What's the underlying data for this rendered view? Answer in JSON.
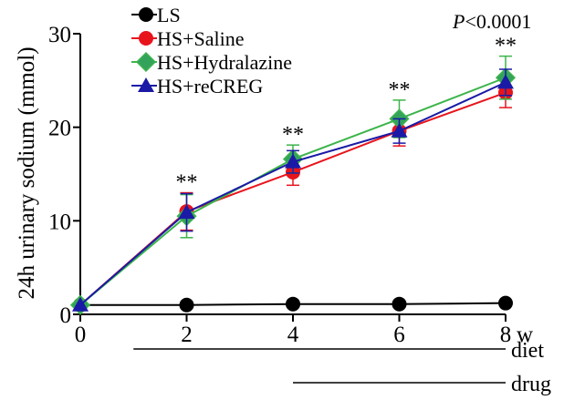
{
  "chart_data": {
    "type": "line",
    "title": "",
    "ylabel": "24h urinary sodium (mmol)",
    "xlabel": "",
    "x_unit": "w",
    "x": [
      0,
      2,
      4,
      6,
      8
    ],
    "xlim": [
      0,
      8
    ],
    "ylim": [
      0,
      30
    ],
    "xticks": [
      "0",
      "2",
      "4",
      "6",
      "8"
    ],
    "yticks": [
      "0",
      "10",
      "20",
      "30"
    ],
    "grid": false,
    "legend_position": "top-left",
    "p_value": {
      "prefix": "P",
      "text": "<0.0001"
    },
    "significance": [
      "",
      "**",
      "**",
      "**",
      "**"
    ],
    "bars": [
      {
        "label": "diet",
        "from": 1,
        "to": 8
      },
      {
        "label": "drug",
        "from": 4,
        "to": 8
      }
    ],
    "series": [
      {
        "name": "LS",
        "marker": "circle",
        "color": "#000000",
        "values": [
          1.0,
          1.0,
          1.1,
          1.1,
          1.2
        ],
        "errors": [
          0,
          0,
          0,
          0,
          0
        ]
      },
      {
        "name": "HS+Saline",
        "marker": "circle",
        "color": "#e8141c",
        "values": [
          1.0,
          11.0,
          15.2,
          19.6,
          23.7
        ],
        "errors": [
          0,
          2.0,
          1.4,
          1.6,
          1.6
        ]
      },
      {
        "name": "HS+Hydralazine",
        "marker": "diamond",
        "color": "#3cb44b",
        "fill": "#33a35b",
        "values": [
          1.0,
          10.5,
          16.6,
          20.9,
          25.3
        ],
        "errors": [
          0,
          2.3,
          1.5,
          2.0,
          2.3
        ]
      },
      {
        "name": "HS+reCREG",
        "marker": "triangle",
        "color": "#1a1aa6",
        "values": [
          1.0,
          10.9,
          16.3,
          19.6,
          24.8
        ],
        "errors": [
          0,
          2.0,
          1.2,
          1.3,
          1.4
        ]
      }
    ]
  }
}
